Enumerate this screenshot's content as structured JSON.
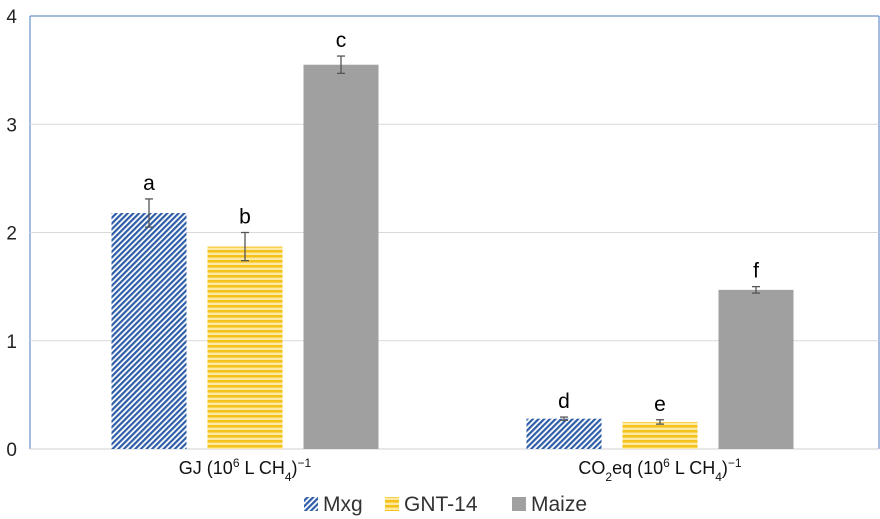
{
  "chart_data": {
    "type": "bar",
    "ylim": [
      0,
      4
    ],
    "yticks": [
      "0",
      "1",
      "2",
      "3",
      "4"
    ],
    "categories": [
      {
        "parts": [
          {
            "t": "GJ (10"
          },
          {
            "t": "6",
            "s": "sup"
          },
          {
            "t": " L CH"
          },
          {
            "t": "4",
            "s": "sub"
          },
          {
            "t": ")"
          },
          {
            "t": "−1",
            "s": "sup"
          }
        ]
      },
      {
        "parts": [
          {
            "t": "CO"
          },
          {
            "t": "2",
            "s": "sub"
          },
          {
            "t": "eq (10"
          },
          {
            "t": "6",
            "s": "sup"
          },
          {
            "t": " L CH"
          },
          {
            "t": "4",
            "s": "sub"
          },
          {
            "t": ")"
          },
          {
            "t": "−1",
            "s": "sup"
          }
        ]
      }
    ],
    "series": [
      {
        "name": "Mxg",
        "pattern": "diagonal",
        "color": "#2f5ea8",
        "values": [
          2.18,
          0.28
        ],
        "errors": [
          0.13,
          0.015
        ],
        "letters": [
          "a",
          "d"
        ]
      },
      {
        "name": "GNT-14",
        "pattern": "horizontal",
        "color": "#f5c21b",
        "values": [
          1.87,
          0.25
        ],
        "errors": [
          0.13,
          0.02
        ],
        "letters": [
          "b",
          "e"
        ]
      },
      {
        "name": "Maize",
        "pattern": "solid",
        "color": "#a0a0a0",
        "values": [
          3.55,
          1.47
        ],
        "errors": [
          0.08,
          0.03
        ],
        "letters": [
          "c",
          "f"
        ]
      }
    ],
    "grid": true,
    "legend": "bottom-center"
  }
}
